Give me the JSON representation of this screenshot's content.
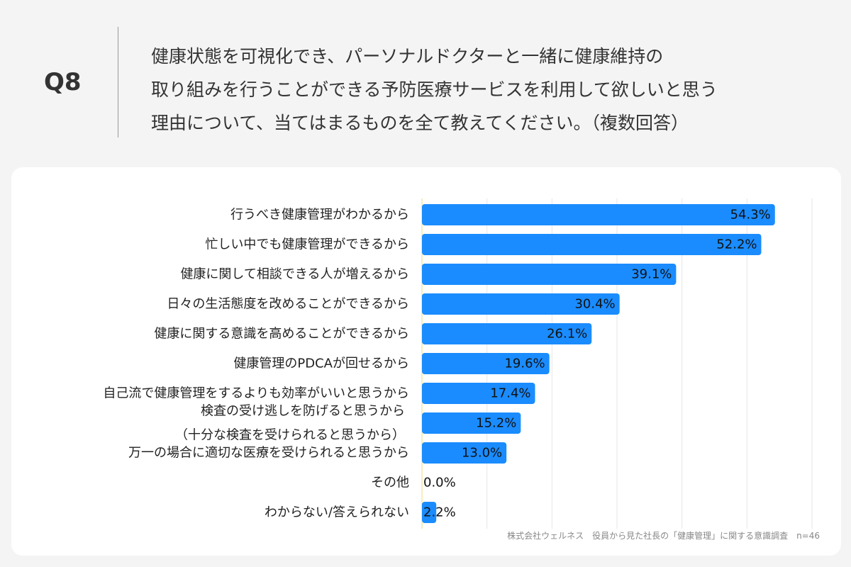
{
  "header": {
    "question_no": "Q8",
    "question_lines": [
      "健康状態を可視化でき、パーソナルドクターと一緒に健康維持の",
      "取り組みを行うことができる予防医療サービスを利用して欲しいと思う",
      "理由について、当てはまるものを全て教えてください。（複数回答）"
    ]
  },
  "chart_data": {
    "type": "bar",
    "orientation": "horizontal",
    "title": "",
    "xlabel": "",
    "ylabel": "",
    "xlim": [
      0,
      60
    ],
    "grid": true,
    "categories": [
      [
        "行うべき健康管理がわかるから"
      ],
      [
        "忙しい中でも健康管理ができるから"
      ],
      [
        "健康に関して相談できる人が増えるから"
      ],
      [
        "日々の生活態度を改めることができるから"
      ],
      [
        "健康に関する意識を高めることができるから"
      ],
      [
        "健康管理のPDCAが回せるから"
      ],
      [
        "自己流で健康管理をするよりも効率がいいと思うから"
      ],
      [
        "検査の受け逃しを防げると思うから",
        "（十分な検査を受けられると思うから）"
      ],
      [
        "万一の場合に適切な医療を受けられると思うから"
      ],
      [
        "その他"
      ],
      [
        "わからない/答えられない"
      ]
    ],
    "values": [
      54.3,
      52.2,
      39.1,
      30.4,
      26.1,
      19.6,
      17.4,
      15.2,
      13.0,
      0.0,
      2.2
    ],
    "value_labels": [
      "54.3%",
      "52.2%",
      "39.1%",
      "30.4%",
      "26.1%",
      "19.6%",
      "17.4%",
      "15.2%",
      "13.0%",
      "0.0%",
      "2.2%"
    ],
    "bar_color": "#1a8cff"
  },
  "footnote": "株式会社ウェルネス　役員から見た社長の「健康管理」に関する意識調査　n=46"
}
